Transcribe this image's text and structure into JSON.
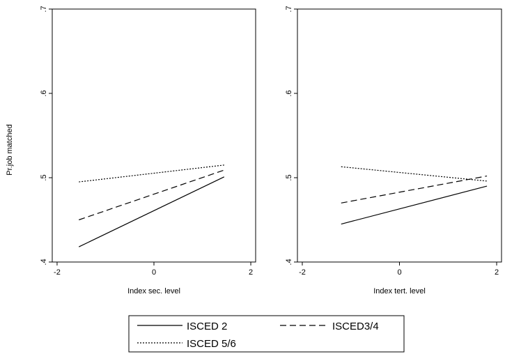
{
  "chart_data": [
    {
      "type": "line",
      "title": "",
      "xlabel": "Index sec. level",
      "ylabel": "Pr.job matched",
      "xlim": [
        -2.1,
        2.1
      ],
      "ylim": [
        0.4,
        0.7
      ],
      "x_ticks": [
        "-2",
        "0",
        "2"
      ],
      "y_ticks": [
        ".4",
        ".5",
        ".6",
        ".7"
      ],
      "grid": false,
      "series": [
        {
          "name": "ISCED 2",
          "style": "solid",
          "x": [
            -1.55,
            1.45
          ],
          "y": [
            0.418,
            0.501
          ]
        },
        {
          "name": "ISCED3/4",
          "style": "dashed",
          "x": [
            -1.55,
            1.45
          ],
          "y": [
            0.45,
            0.509
          ]
        },
        {
          "name": "ISCED 5/6",
          "style": "dotted",
          "x": [
            -1.55,
            1.45
          ],
          "y": [
            0.495,
            0.515
          ]
        }
      ]
    },
    {
      "type": "line",
      "title": "",
      "xlabel": "Index tert. level",
      "ylabel": "",
      "xlim": [
        -2.1,
        2.1
      ],
      "ylim": [
        0.4,
        0.7
      ],
      "x_ticks": [
        "-2",
        "0",
        "2"
      ],
      "y_ticks": [
        ".4",
        ".5",
        ".6",
        ".7"
      ],
      "grid": false,
      "series": [
        {
          "name": "ISCED 2",
          "style": "solid",
          "x": [
            -1.2,
            1.8
          ],
          "y": [
            0.445,
            0.49
          ]
        },
        {
          "name": "ISCED3/4",
          "style": "dashed",
          "x": [
            -1.2,
            1.8
          ],
          "y": [
            0.47,
            0.502
          ]
        },
        {
          "name": "ISCED 5/6",
          "style": "dotted",
          "x": [
            -1.2,
            1.8
          ],
          "y": [
            0.513,
            0.496
          ]
        }
      ]
    }
  ],
  "legend": {
    "placement": "bottom",
    "items": [
      {
        "label": "ISCED 2",
        "style": "solid"
      },
      {
        "label": "ISCED3/4",
        "style": "dashed"
      },
      {
        "label": "ISCED 5/6",
        "style": "dotted"
      }
    ]
  }
}
